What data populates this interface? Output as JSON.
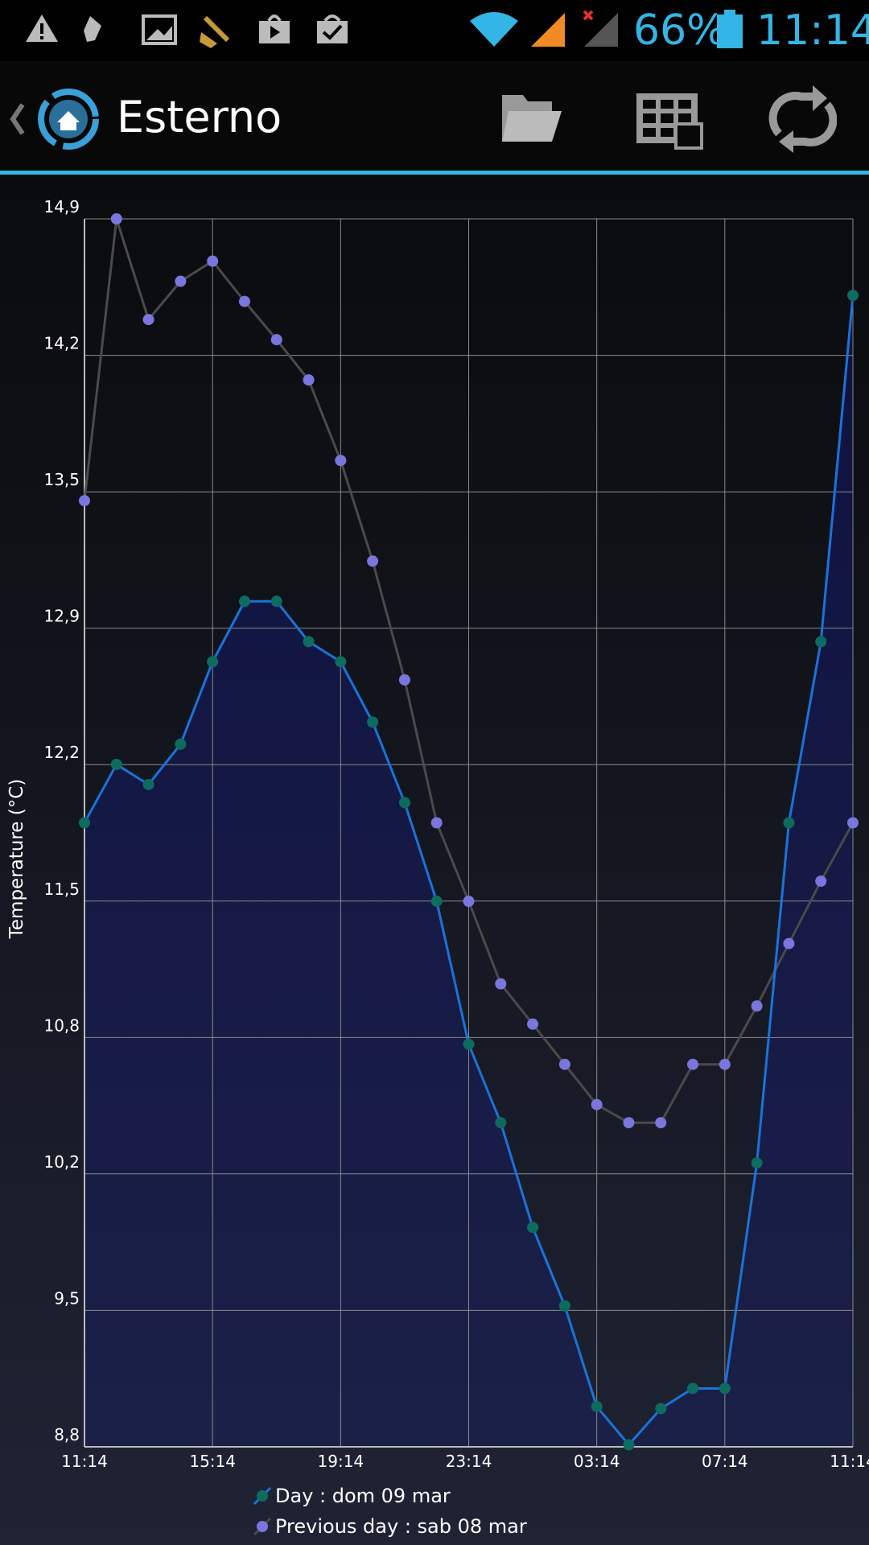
{
  "status_bar": {
    "battery": "66%",
    "time": "11:14"
  },
  "action_bar": {
    "title": "Esterno"
  },
  "chart_data": {
    "type": "line",
    "y_label": "Temperature (°C)",
    "x": [
      0,
      1,
      2,
      3,
      4,
      5,
      6,
      7,
      8,
      9,
      10,
      11,
      12,
      13,
      14,
      15,
      16,
      17,
      18,
      19,
      20,
      21,
      22,
      23,
      24
    ],
    "xlim": [
      0,
      24
    ],
    "xticks": [
      {
        "value": 0,
        "label": "11:14"
      },
      {
        "value": 4,
        "label": "15:14"
      },
      {
        "value": 8,
        "label": "19:14"
      },
      {
        "value": 12,
        "label": "23:14"
      },
      {
        "value": 16,
        "label": "03:14"
      },
      {
        "value": 20,
        "label": "07:14"
      },
      {
        "value": 24,
        "label": "11:14"
      }
    ],
    "ylim": [
      8.8,
      14.9
    ],
    "yticks": [
      {
        "value": 8.8,
        "label": "8,8"
      },
      {
        "value": 9.478,
        "label": "9,5"
      },
      {
        "value": 10.156,
        "label": "10,2"
      },
      {
        "value": 10.833,
        "label": "10,8"
      },
      {
        "value": 11.511,
        "label": "11,5"
      },
      {
        "value": 12.189,
        "label": "12,2"
      },
      {
        "value": 12.867,
        "label": "12,9"
      },
      {
        "value": 13.544,
        "label": "13,5"
      },
      {
        "value": 14.222,
        "label": "14,2"
      },
      {
        "value": 14.9,
        "label": "14,9"
      }
    ],
    "grid": true,
    "series": [
      {
        "name": "Day : dom 09 mar",
        "color": "#0e6b60",
        "line_color": "#1a73d9",
        "area": true,
        "values": [
          11.9,
          12.19,
          12.09,
          12.29,
          12.7,
          13.0,
          13.0,
          12.8,
          12.7,
          12.4,
          12.0,
          11.51,
          10.8,
          10.41,
          9.89,
          9.5,
          9.0,
          8.81,
          8.99,
          9.09,
          9.09,
          10.21,
          11.9,
          12.8,
          14.52
        ]
      },
      {
        "name": "Previous day : sab 08 mar",
        "color": "#7a76de",
        "line_color": "#4a4a4a",
        "area": false,
        "values": [
          13.5,
          14.9,
          14.4,
          14.59,
          14.69,
          14.49,
          14.3,
          14.1,
          13.7,
          13.2,
          12.61,
          11.9,
          11.51,
          11.1,
          10.9,
          10.7,
          10.5,
          10.41,
          10.41,
          10.7,
          10.7,
          10.99,
          11.3,
          11.61,
          11.9
        ]
      }
    ]
  }
}
